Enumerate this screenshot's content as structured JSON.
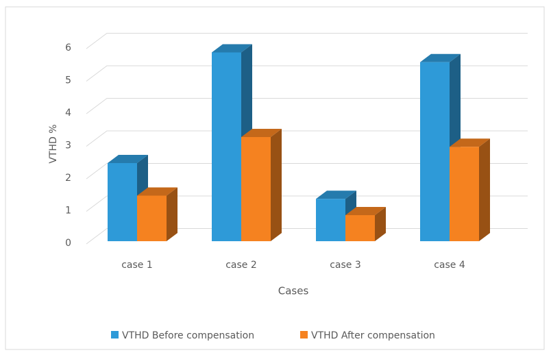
{
  "chart_data": {
    "type": "bar3d",
    "categories": [
      "case 1",
      "case 2",
      "case 3",
      "case 4"
    ],
    "series": [
      {
        "name": "VTHD Before compensation",
        "color": "#2e9ad8",
        "values": [
          2.4,
          5.8,
          1.3,
          5.5
        ]
      },
      {
        "name": "VTHD After compensation",
        "color": "#f58220",
        "values": [
          1.4,
          3.2,
          0.8,
          2.9
        ]
      }
    ],
    "ylim": [
      0,
      6
    ],
    "yticks": [
      0,
      1,
      2,
      3,
      4,
      5,
      6
    ],
    "grid": true,
    "ylabel": "VTHD  %",
    "xlabel": "Cases",
    "legend": "bottom"
  }
}
